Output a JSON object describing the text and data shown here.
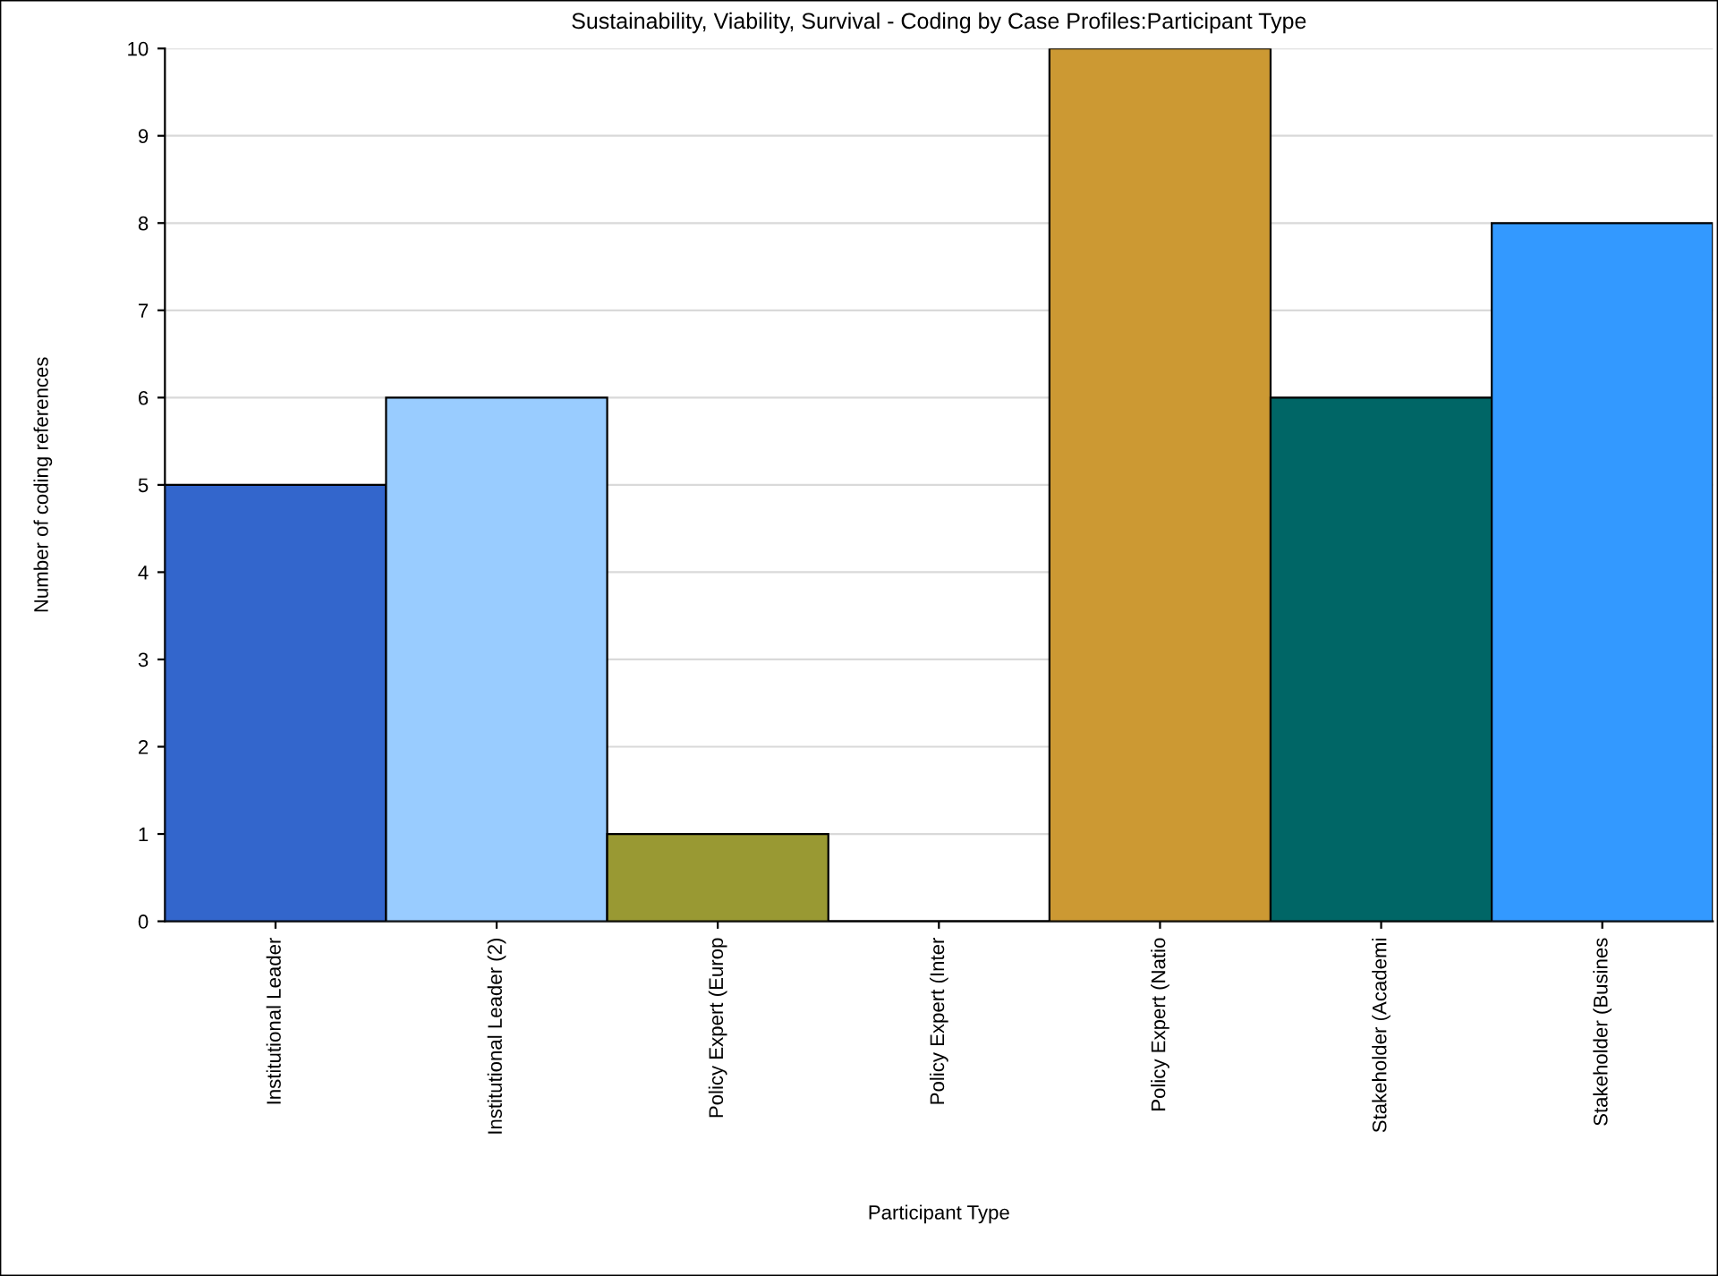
{
  "chart_data": {
    "type": "bar",
    "title": "Sustainability, Viability, Survival - Coding by Case Profiles:Participant Type",
    "xlabel": "Participant Type",
    "ylabel": "Number of coding references",
    "categories": [
      "Institutional Leader",
      "Institutional Leader (2)",
      "Policy Expert (Europ",
      "Policy Expert (Inter",
      "Policy Expert (Natio",
      "Stakeholder (Academi",
      "Stakeholder (Busines"
    ],
    "values": [
      5,
      6,
      1,
      0,
      10,
      6,
      8
    ],
    "colors": [
      "#3366cc",
      "#99ccff",
      "#999933",
      "#666699",
      "#cc9933",
      "#006666",
      "#3399ff"
    ],
    "ylim": [
      0,
      10
    ],
    "yticks": [
      0,
      1,
      2,
      3,
      4,
      5,
      6,
      7,
      8,
      9,
      10
    ],
    "grid": "y",
    "legend": false
  }
}
